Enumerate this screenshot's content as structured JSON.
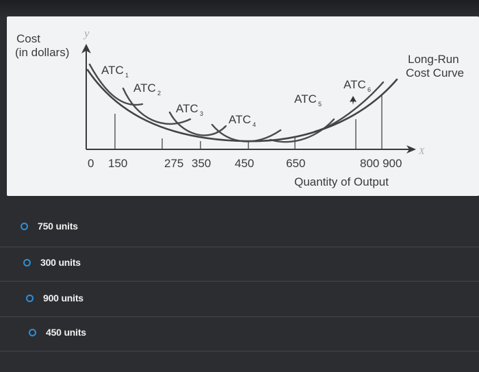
{
  "chart_data": {
    "type": "line",
    "ylabel_lines": [
      "Cost",
      "(in dollars)"
    ],
    "y_axis_letter": "y",
    "x_axis_letter": "X",
    "xlabel": "Quantity of Output",
    "long_run_label_lines": [
      "Long-Run",
      "Cost Curve"
    ],
    "x_tick_labels": [
      "0",
      "150",
      "275",
      "350",
      "450",
      "650",
      "800 900"
    ],
    "short_run_curves": [
      {
        "label": "ATC",
        "subscript": "1"
      },
      {
        "label": "ATC",
        "subscript": "2"
      },
      {
        "label": "ATC",
        "subscript": "3"
      },
      {
        "label": "ATC",
        "subscript": "4"
      },
      {
        "label": "ATC",
        "subscript": "5"
      },
      {
        "label": "ATC",
        "subscript": "6"
      }
    ]
  },
  "options": [
    {
      "label": "750 units"
    },
    {
      "label": "300 units"
    },
    {
      "label": "900 units"
    },
    {
      "label": "450 units"
    }
  ],
  "colors": {
    "curve": "#4a4a4a",
    "radio": "#2f8fd6",
    "figure_bg": "#f2f3f5",
    "page_bg": "#2b2d31"
  }
}
